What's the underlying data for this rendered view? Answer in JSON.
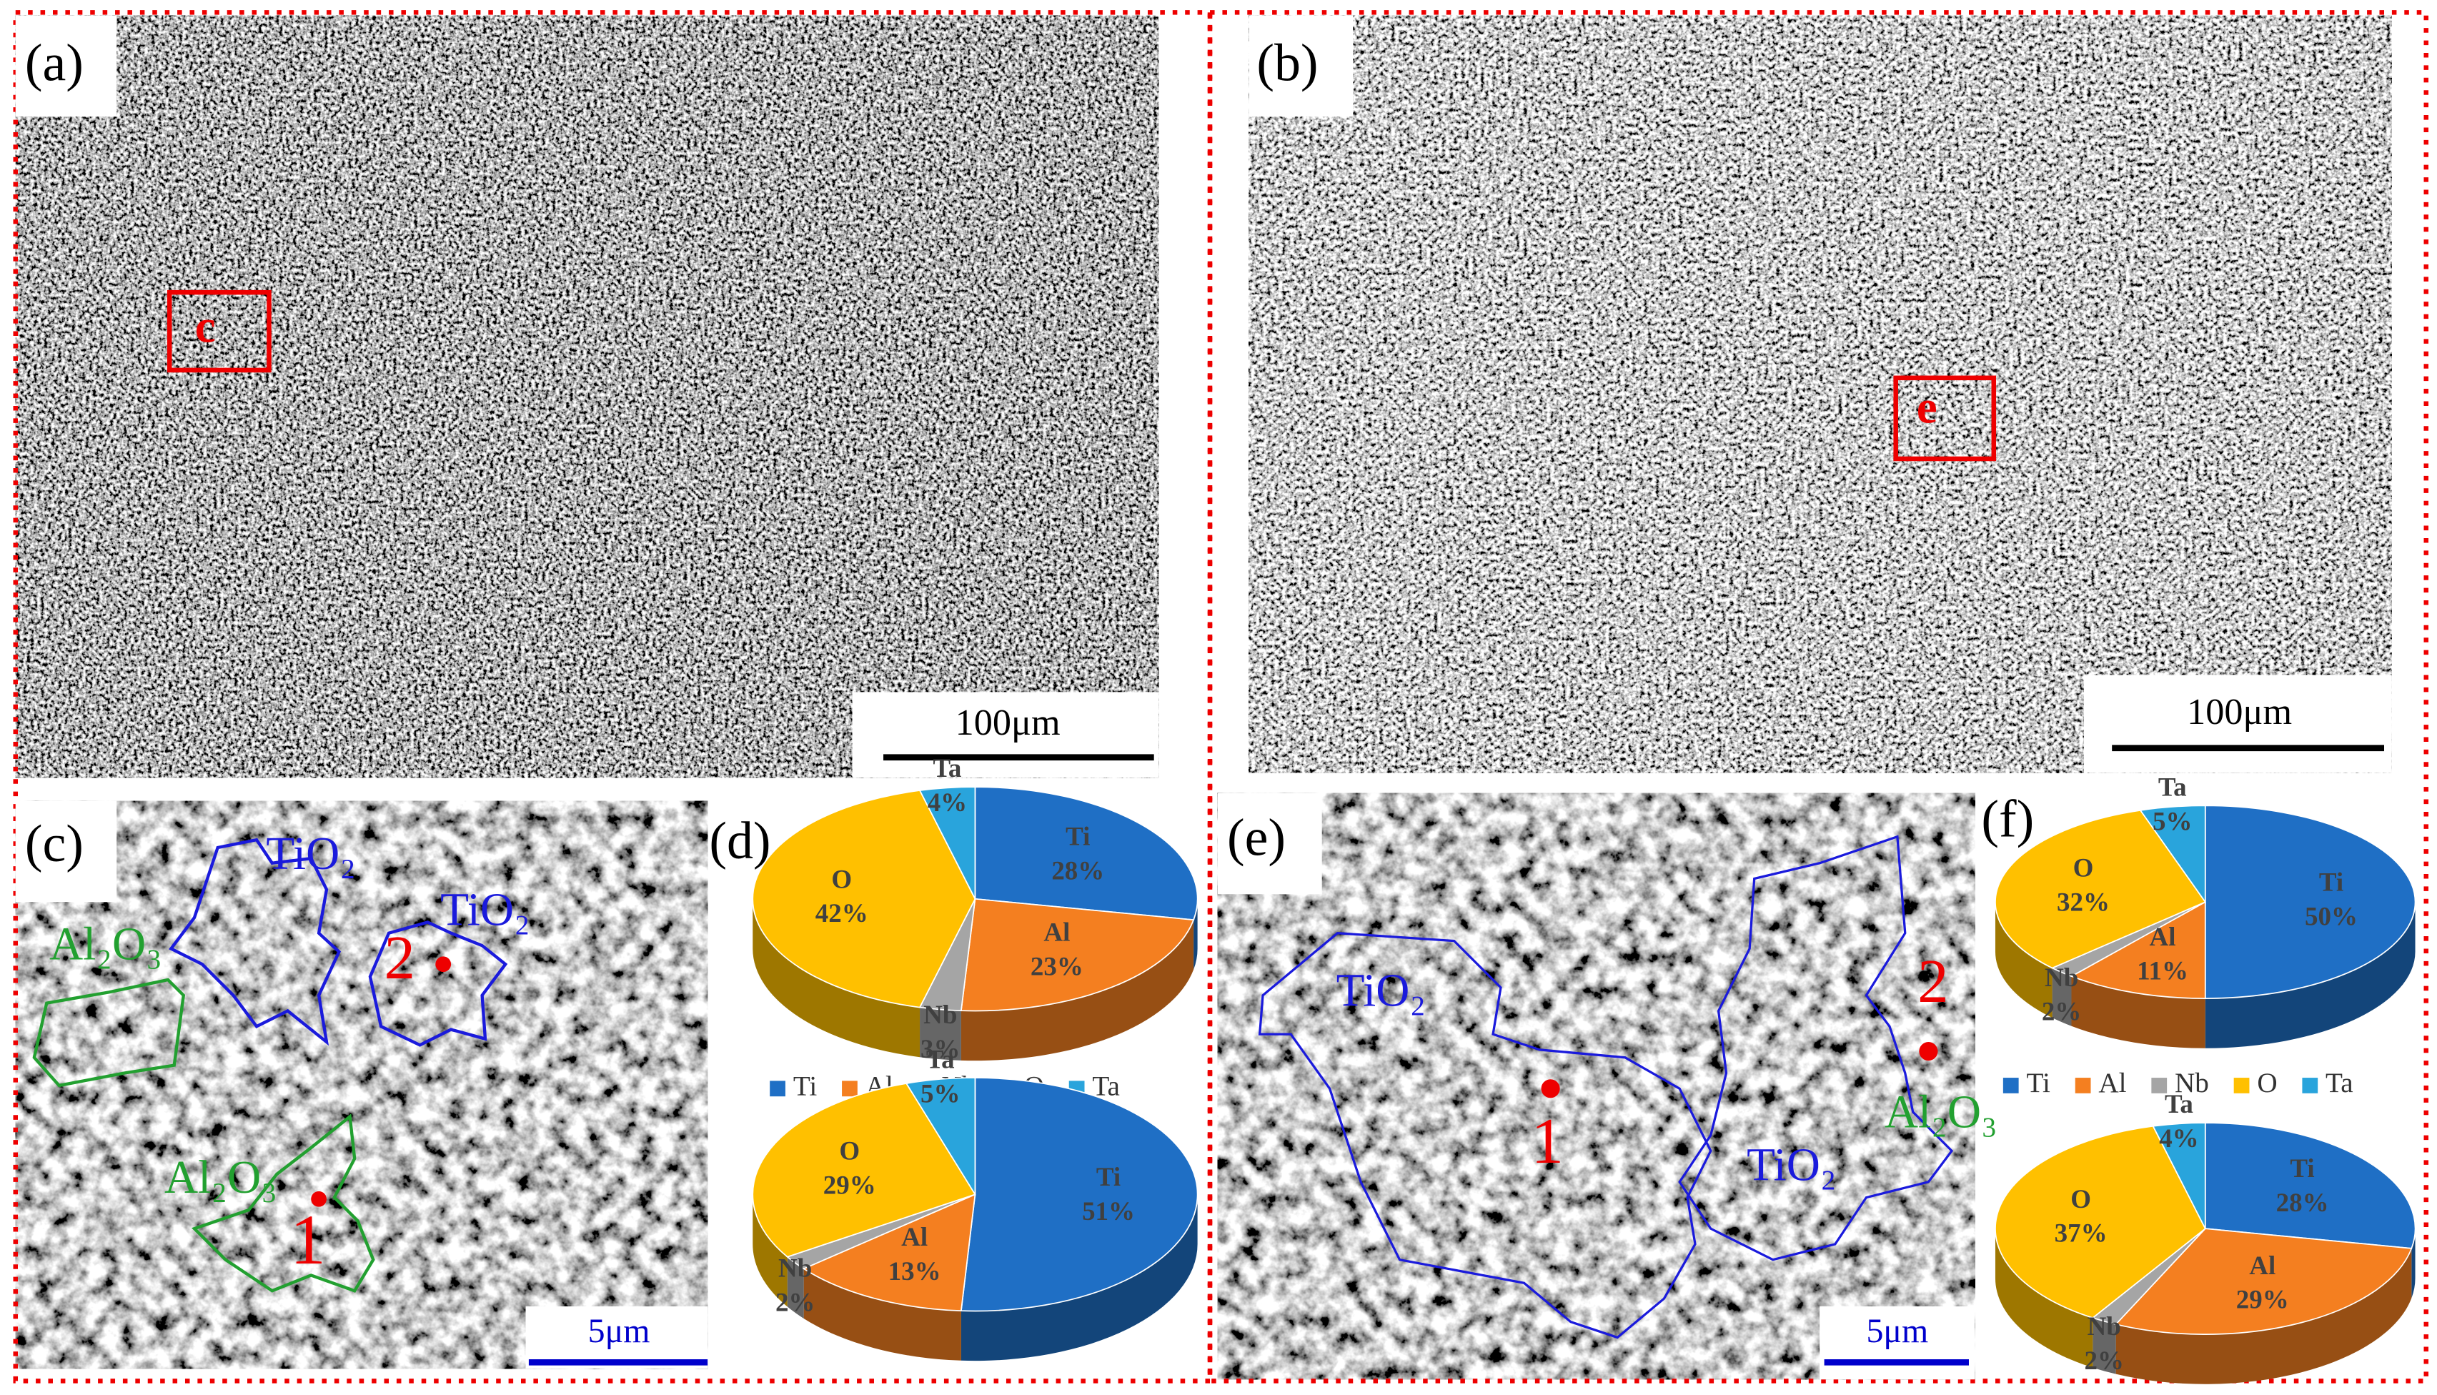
{
  "panels": {
    "a": {
      "label": "(a)",
      "scale_bar": "100μm",
      "box_label": "c"
    },
    "b": {
      "label": "(b)",
      "scale_bar": "100μm",
      "box_label": "e"
    },
    "c": {
      "label": "(c)",
      "scale_bar": "5μm",
      "annotations": [
        "TiO₂",
        "TiO₂",
        "Al₂O₃",
        "Al₂O₃",
        "1",
        "2"
      ]
    },
    "d": {
      "label": "(d)"
    },
    "e": {
      "label": "(e)",
      "scale_bar": "5μm",
      "annotations": [
        "TiO₂",
        "TiO₂",
        "Al₂O₃",
        "1",
        "2"
      ]
    },
    "f": {
      "label": "(f)"
    }
  },
  "chart_data": [
    {
      "type": "pie",
      "categories": [
        "Ti",
        "Al",
        "Nb",
        "O",
        "Ta"
      ],
      "values": [
        28,
        23,
        3,
        42,
        4
      ],
      "value_labels": [
        "28%",
        "23%",
        "3%",
        "42%",
        "4%"
      ],
      "colors": [
        "#1f6fc5",
        "#f47f20",
        "#a5a5a5",
        "#ffc000",
        "#29a4dc"
      ],
      "legend": true
    },
    {
      "type": "pie",
      "categories": [
        "Ti",
        "Al",
        "Nb",
        "O",
        "Ta"
      ],
      "values": [
        51,
        13,
        2,
        29,
        5
      ],
      "value_labels": [
        "51%",
        "13%",
        "2%",
        "29%",
        "5%"
      ],
      "colors": [
        "#1f6fc5",
        "#f47f20",
        "#a5a5a5",
        "#ffc000",
        "#29a4dc"
      ],
      "legend": false
    },
    {
      "type": "pie",
      "categories": [
        "Ti",
        "Al",
        "Nb",
        "O",
        "Ta"
      ],
      "values": [
        50,
        11,
        2,
        32,
        5
      ],
      "value_labels": [
        "50%",
        "11%",
        "2%",
        "32%",
        "5%"
      ],
      "colors": [
        "#1f6fc5",
        "#f47f20",
        "#a5a5a5",
        "#ffc000",
        "#29a4dc"
      ],
      "legend": true
    },
    {
      "type": "pie",
      "categories": [
        "Ti",
        "Al",
        "Nb",
        "O",
        "Ta"
      ],
      "values": [
        28,
        29,
        2,
        37,
        4
      ],
      "value_labels": [
        "28%",
        "29%",
        "2%",
        "37%",
        "4%"
      ],
      "colors": [
        "#1f6fc5",
        "#f47f20",
        "#a5a5a5",
        "#ffc000",
        "#29a4dc"
      ],
      "legend": false
    }
  ]
}
